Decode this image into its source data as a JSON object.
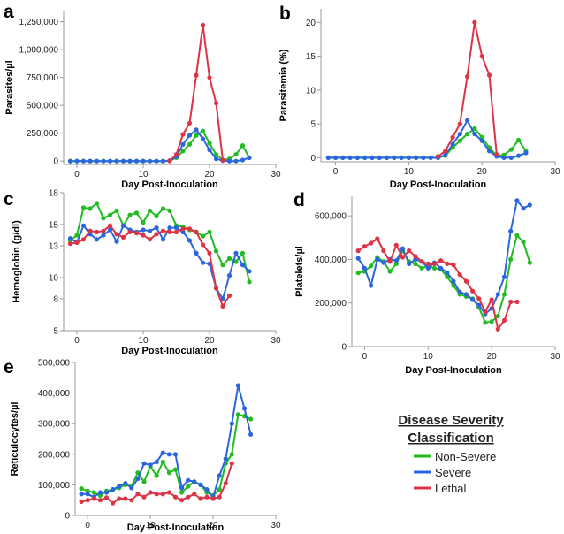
{
  "colors": {
    "non_severe": "#22bb22",
    "severe": "#2a66dd",
    "lethal": "#dd3344",
    "axis": "#9a9a9a"
  },
  "legend": {
    "title_line1": "Disease Severity",
    "title_line2": "Classification",
    "items": [
      {
        "label": "Non-Severe",
        "color": "#22bb22"
      },
      {
        "label": "Severe",
        "color": "#2a66dd"
      },
      {
        "label": "Lethal",
        "color": "#dd3344"
      }
    ]
  },
  "chart_data": [
    {
      "panel": "a",
      "type": "line",
      "xlabel": "Day Post-Inoculation",
      "ylabel": "Parasites/µl",
      "xlim": [
        -2,
        30
      ],
      "ylim": [
        -30000,
        1350000
      ],
      "xticks": [
        "0",
        "10",
        "20",
        "30"
      ],
      "yticks": [
        "0",
        "250,000",
        "500,000",
        "750,000",
        "1,000,000",
        "1,250,000"
      ],
      "series": [
        {
          "name": "Non-Severe",
          "x": [
            -1,
            0,
            1,
            2,
            3,
            4,
            5,
            6,
            7,
            8,
            9,
            10,
            11,
            12,
            13,
            14,
            15,
            16,
            17,
            18,
            19,
            20,
            21,
            22,
            23,
            24,
            25,
            26
          ],
          "y": [
            0,
            0,
            0,
            0,
            0,
            0,
            0,
            0,
            0,
            0,
            0,
            0,
            0,
            0,
            0,
            2000,
            30000,
            90000,
            150000,
            230000,
            270000,
            160000,
            60000,
            10000,
            20000,
            60000,
            140000,
            30000
          ]
        },
        {
          "name": "Severe",
          "x": [
            -1,
            0,
            1,
            2,
            3,
            4,
            5,
            6,
            7,
            8,
            9,
            10,
            11,
            12,
            13,
            14,
            15,
            16,
            17,
            18,
            19,
            20,
            21,
            22,
            23,
            24,
            25,
            26
          ],
          "y": [
            0,
            0,
            0,
            0,
            0,
            0,
            0,
            0,
            0,
            0,
            0,
            0,
            0,
            0,
            0,
            5000,
            40000,
            150000,
            230000,
            280000,
            200000,
            100000,
            20000,
            5000,
            0,
            0,
            10000,
            30000
          ]
        },
        {
          "name": "Lethal",
          "x": [
            14,
            15,
            16,
            17,
            18,
            19,
            20,
            21,
            22
          ],
          "y": [
            2000,
            60000,
            240000,
            340000,
            770000,
            1220000,
            750000,
            520000,
            10000
          ]
        }
      ]
    },
    {
      "panel": "b",
      "type": "line",
      "xlabel": "Day Post-Inoculation",
      "ylabel": "Parasitemia (%)",
      "xlim": [
        -2,
        30
      ],
      "ylim": [
        -0.6,
        22
      ],
      "xticks": [
        "0",
        "10",
        "20",
        "30"
      ],
      "yticks": [
        "0",
        "5",
        "10",
        "15",
        "20"
      ],
      "series": [
        {
          "name": "Non-Severe",
          "x": [
            -1,
            0,
            1,
            2,
            3,
            4,
            5,
            6,
            7,
            8,
            9,
            10,
            11,
            12,
            13,
            14,
            15,
            16,
            17,
            18,
            19,
            20,
            21,
            22,
            23,
            24,
            25,
            26
          ],
          "y": [
            0,
            0,
            0,
            0,
            0,
            0,
            0,
            0,
            0,
            0,
            0,
            0,
            0,
            0,
            0,
            0,
            0.3,
            1.5,
            2.5,
            3.5,
            4.3,
            3.0,
            1.5,
            0.3,
            0.4,
            1.2,
            2.6,
            1.0
          ]
        },
        {
          "name": "Severe",
          "x": [
            -1,
            0,
            1,
            2,
            3,
            4,
            5,
            6,
            7,
            8,
            9,
            10,
            11,
            12,
            13,
            14,
            15,
            16,
            17,
            18,
            19,
            20,
            21,
            22,
            23,
            24,
            25,
            26
          ],
          "y": [
            0,
            0,
            0,
            0,
            0,
            0,
            0,
            0,
            0,
            0,
            0,
            0,
            0,
            0,
            0,
            0,
            0.4,
            2.0,
            3.5,
            5.5,
            3.5,
            2.5,
            1.0,
            0.2,
            0,
            0,
            0.3,
            0.7
          ]
        },
        {
          "name": "Lethal",
          "x": [
            14,
            15,
            16,
            17,
            18,
            19,
            20,
            21,
            22
          ],
          "y": [
            0.2,
            1.0,
            3.0,
            5.0,
            12.0,
            20.0,
            15.0,
            12.2,
            0.5
          ]
        }
      ]
    },
    {
      "panel": "c",
      "type": "line",
      "xlabel": "Day Post-Inoculation",
      "ylabel": "Hemoglobin (g/dl)",
      "xlim": [
        -2,
        30
      ],
      "ylim": [
        5,
        18
      ],
      "xticks": [
        "0",
        "10",
        "20",
        "30"
      ],
      "yticks": [
        "5",
        "8",
        "10",
        "13",
        "15",
        "18"
      ],
      "series": [
        {
          "name": "Non-Severe",
          "x": [
            -1,
            0,
            1,
            2,
            3,
            4,
            5,
            6,
            7,
            8,
            9,
            10,
            11,
            12,
            13,
            14,
            15,
            16,
            17,
            18,
            19,
            20,
            21,
            22,
            23,
            24,
            25,
            26
          ],
          "y": [
            13.5,
            14.0,
            16.6,
            16.5,
            17.0,
            15.6,
            15.9,
            16.3,
            14.9,
            15.9,
            16.1,
            15.2,
            16.3,
            15.8,
            16.5,
            16.3,
            14.9,
            14.8,
            14.5,
            14.3,
            13.9,
            14.3,
            12.5,
            11.2,
            11.8,
            11.5,
            12.3,
            9.6
          ]
        },
        {
          "name": "Severe",
          "x": [
            -1,
            0,
            1,
            2,
            3,
            4,
            5,
            6,
            7,
            8,
            9,
            10,
            11,
            12,
            13,
            14,
            15,
            16,
            17,
            18,
            19,
            20,
            21,
            22,
            23,
            24,
            25,
            26
          ],
          "y": [
            13.7,
            13.3,
            14.9,
            14.1,
            13.6,
            14.0,
            14.5,
            13.4,
            14.9,
            14.5,
            14.3,
            14.5,
            14.4,
            14.7,
            13.6,
            14.7,
            14.7,
            14.3,
            13.5,
            12.3,
            11.4,
            11.3,
            9.0,
            8.0,
            10.2,
            12.3,
            11.2,
            10.6
          ]
        },
        {
          "name": "Lethal",
          "x": [
            -1,
            0,
            1,
            2,
            3,
            4,
            5,
            6,
            7,
            8,
            9,
            10,
            11,
            12,
            13,
            14,
            15,
            16,
            17,
            18,
            19,
            20,
            21,
            22,
            23
          ],
          "y": [
            13.2,
            13.3,
            13.6,
            14.4,
            14.3,
            14.4,
            14.9,
            14.1,
            13.8,
            14.3,
            14.2,
            14.0,
            13.6,
            14.1,
            14.4,
            14.3,
            14.3,
            14.6,
            14.6,
            14.3,
            13.1,
            12.3,
            9.0,
            7.3,
            8.3
          ]
        }
      ]
    },
    {
      "panel": "d",
      "type": "line",
      "xlabel": "Day Post-Inoculation",
      "ylabel": "Platelets/µl",
      "xlim": [
        -2,
        30
      ],
      "ylim": [
        0,
        690000
      ],
      "xticks": [
        "0",
        "10",
        "20",
        "30"
      ],
      "yticks": [
        "0",
        "200,000",
        "400,000",
        "600,000"
      ],
      "series": [
        {
          "name": "Non-Severe",
          "x": [
            -1,
            0,
            1,
            2,
            3,
            4,
            5,
            6,
            7,
            8,
            9,
            10,
            11,
            12,
            13,
            14,
            15,
            16,
            17,
            18,
            19,
            20,
            21,
            22,
            23,
            24,
            25,
            26
          ],
          "y": [
            338000,
            345000,
            370000,
            410000,
            390000,
            345000,
            380000,
            440000,
            390000,
            380000,
            360000,
            370000,
            360000,
            355000,
            320000,
            280000,
            240000,
            230000,
            220000,
            180000,
            110000,
            115000,
            140000,
            240000,
            400000,
            510000,
            480000,
            385000
          ]
        },
        {
          "name": "Severe",
          "x": [
            -1,
            0,
            1,
            2,
            3,
            4,
            5,
            6,
            7,
            8,
            9,
            10,
            11,
            12,
            13,
            14,
            15,
            16,
            17,
            18,
            19,
            20,
            21,
            22,
            23,
            24,
            25,
            26
          ],
          "y": [
            405000,
            360000,
            280000,
            400000,
            385000,
            400000,
            395000,
            450000,
            380000,
            400000,
            390000,
            360000,
            385000,
            360000,
            340000,
            300000,
            250000,
            240000,
            215000,
            190000,
            150000,
            175000,
            240000,
            320000,
            530000,
            670000,
            635000,
            650000
          ]
        },
        {
          "name": "Lethal",
          "x": [
            -1,
            0,
            1,
            2,
            3,
            4,
            5,
            6,
            7,
            8,
            9,
            10,
            11,
            12,
            13,
            14,
            15,
            16,
            17,
            18,
            19,
            20,
            21,
            22,
            23,
            24
          ],
          "y": [
            440000,
            460000,
            475000,
            495000,
            440000,
            390000,
            465000,
            410000,
            440000,
            415000,
            390000,
            380000,
            380000,
            395000,
            380000,
            375000,
            330000,
            300000,
            255000,
            220000,
            160000,
            215000,
            80000,
            120000,
            205000,
            205000
          ]
        }
      ]
    },
    {
      "panel": "e",
      "type": "line",
      "xlabel": "Day Post-Inoculation",
      "ylabel": "Reticulocytes/µl",
      "xlim": [
        -2,
        30
      ],
      "ylim": [
        0,
        500000
      ],
      "xticks": [
        "0",
        "10",
        "20",
        "30"
      ],
      "yticks": [
        "0",
        "100,000",
        "200,000",
        "300,000",
        "400,000",
        "500,000"
      ],
      "series": [
        {
          "name": "Non-Severe",
          "x": [
            -1,
            0,
            1,
            2,
            3,
            4,
            5,
            6,
            7,
            8,
            9,
            10,
            11,
            12,
            13,
            14,
            15,
            16,
            17,
            18,
            19,
            20,
            21,
            22,
            23,
            24,
            25,
            26
          ],
          "y": [
            88000,
            80000,
            75000,
            65000,
            80000,
            85000,
            90000,
            100000,
            95000,
            140000,
            110000,
            160000,
            130000,
            175000,
            140000,
            150000,
            75000,
            95000,
            110000,
            100000,
            75000,
            65000,
            85000,
            170000,
            200000,
            330000,
            325000,
            315000
          ]
        },
        {
          "name": "Severe",
          "x": [
            -1,
            0,
            1,
            2,
            3,
            4,
            5,
            6,
            7,
            8,
            9,
            10,
            11,
            12,
            13,
            14,
            15,
            16,
            17,
            18,
            19,
            20,
            21,
            22,
            23,
            24,
            25,
            26
          ],
          "y": [
            70000,
            70000,
            60000,
            75000,
            75000,
            85000,
            95000,
            105000,
            90000,
            120000,
            170000,
            165000,
            175000,
            205000,
            200000,
            200000,
            90000,
            115000,
            110000,
            100000,
            85000,
            60000,
            130000,
            185000,
            300000,
            425000,
            350000,
            265000
          ]
        },
        {
          "name": "Lethal",
          "x": [
            -1,
            0,
            1,
            2,
            3,
            4,
            5,
            6,
            7,
            8,
            9,
            10,
            11,
            12,
            13,
            14,
            15,
            16,
            17,
            18,
            19,
            20,
            21,
            22,
            23
          ],
          "y": [
            45000,
            50000,
            55000,
            50000,
            58000,
            40000,
            55000,
            55000,
            50000,
            70000,
            60000,
            75000,
            70000,
            70000,
            75000,
            60000,
            50000,
            60000,
            70000,
            55000,
            60000,
            55000,
            60000,
            105000,
            170000
          ]
        }
      ]
    }
  ]
}
